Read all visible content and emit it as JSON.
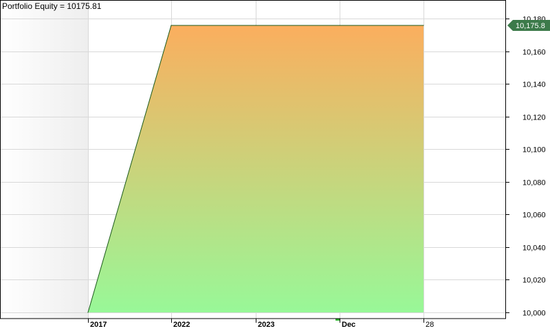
{
  "chart_title": "Portfolio Equity = 10175.81",
  "last_value_label": "10,175.8",
  "colors": {
    "fill_top": "#FBAE5E",
    "fill_bottom": "#98F898",
    "line": "#1a5a1a",
    "marker": "#3C7A4A",
    "grid": "#d8d8d8",
    "axis": "#000000",
    "left_shade": "#eeeeee",
    "cursor_tick": "#2DB52D"
  },
  "chart_data": {
    "type": "area",
    "title": "Portfolio Equity = 10175.81",
    "xlabel": "",
    "ylabel": "",
    "x_tick_labels": [
      "2017",
      "2022",
      "2023",
      "Dec",
      "28"
    ],
    "x": [
      "2017",
      "2022",
      "2023",
      "Dec",
      "28"
    ],
    "series": [
      {
        "name": "Portfolio Equity",
        "values": [
          10000,
          10175.81,
          10175.81,
          10175.81,
          10175.81
        ]
      }
    ],
    "ylim": [
      9996,
      10184
    ],
    "y_ticks": [
      10000,
      10020,
      10040,
      10060,
      10080,
      10100,
      10120,
      10140,
      10160,
      10180
    ],
    "y_tick_labels": [
      "10,000",
      "10,020",
      "10,040",
      "10,060",
      "10,080",
      "10,100",
      "10,120",
      "10,140",
      "10,160",
      "10,180"
    ],
    "grid": true,
    "legend": "none"
  }
}
